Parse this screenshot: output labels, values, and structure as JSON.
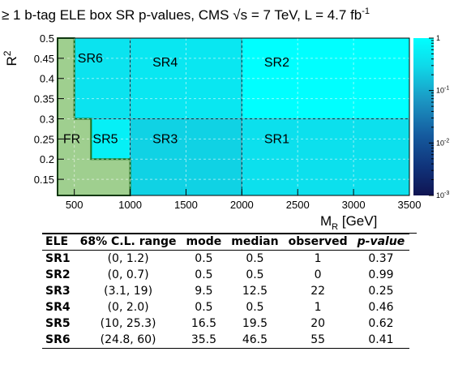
{
  "chart_data": {
    "type": "heatmap",
    "title_prefix": "≥ 1 b-tag ELE box SR p-values, CMS",
    "title_sqrt": "s",
    "title_mid": " = 7 TeV, L = 4.7 fb",
    "title_sup": "-1",
    "ylabel": "R",
    "ylabel_sup": "2",
    "xlabel_main": "M",
    "xlabel_sub": "R",
    "xlabel_unit": " [GeV]",
    "xlim": [
      350,
      3500
    ],
    "ylim": [
      0.11,
      0.5
    ],
    "x_ticks": [
      500,
      1000,
      1500,
      2000,
      2500,
      3000,
      3500
    ],
    "x_tick_labels": [
      "500",
      "1000",
      "1500",
      "2000",
      "2500",
      "3000",
      "3500"
    ],
    "y_ticks": [
      0.15,
      0.2,
      0.25,
      0.3,
      0.35,
      0.4,
      0.45,
      0.5
    ],
    "y_tick_labels": [
      "0.15",
      "0.2",
      "0.25",
      "0.3",
      "0.35",
      "0.4",
      "0.45",
      "0.5"
    ],
    "colorbar": {
      "scale": "log",
      "range": [
        0.001,
        1
      ],
      "tick_values": [
        1,
        0.1,
        0.01,
        0.001
      ],
      "tick_labels": [
        "1",
        "10-1",
        "10-2",
        "10-3"
      ]
    },
    "regions": [
      {
        "label": "SR6",
        "x": [
          350,
          1000
        ],
        "y": [
          0.3,
          0.5
        ],
        "p_value": 0.41,
        "label_at": [
          530,
          0.45
        ]
      },
      {
        "label": "SR4",
        "x": [
          1000,
          2000
        ],
        "y": [
          0.3,
          0.5
        ],
        "p_value": 0.46,
        "label_at": [
          1200,
          0.44
        ]
      },
      {
        "label": "SR2",
        "x": [
          2000,
          3500
        ],
        "y": [
          0.3,
          0.5
        ],
        "p_value": 0.99,
        "label_at": [
          2200,
          0.44
        ]
      },
      {
        "label": "SR5",
        "x": [
          650,
          1000
        ],
        "y": [
          0.11,
          0.3
        ],
        "p_value": 0.62,
        "label_at": [
          665,
          0.25
        ]
      },
      {
        "label": "SR3",
        "x": [
          1000,
          2000
        ],
        "y": [
          0.11,
          0.3
        ],
        "p_value": 0.25,
        "label_at": [
          1200,
          0.25
        ]
      },
      {
        "label": "SR1",
        "x": [
          2000,
          3500
        ],
        "y": [
          0.11,
          0.3
        ],
        "p_value": 0.37,
        "label_at": [
          2200,
          0.25
        ]
      }
    ],
    "fr_region": {
      "label": "FR",
      "label_at": [
        400,
        0.25
      ],
      "color": "#9fcf8f",
      "border_color": "#1f6f1f"
    }
  },
  "table": {
    "headers": [
      "ELE",
      "68% C.L. range",
      "mode",
      "median",
      "observed",
      "p-value"
    ],
    "rows": [
      [
        "SR1",
        "(0, 1.2)",
        "0.5",
        "0.5",
        "1",
        "0.37"
      ],
      [
        "SR2",
        "(0, 0.7)",
        "0.5",
        "0.5",
        "0",
        "0.99"
      ],
      [
        "SR3",
        "(3.1, 19)",
        "9.5",
        "12.5",
        "22",
        "0.25"
      ],
      [
        "SR4",
        "(0, 2.0)",
        "0.5",
        "0.5",
        "1",
        "0.46"
      ],
      [
        "SR5",
        "(10, 25.3)",
        "16.5",
        "19.5",
        "20",
        "0.62"
      ],
      [
        "SR6",
        "(24.8, 60)",
        "35.5",
        "46.5",
        "55",
        "0.41"
      ]
    ]
  }
}
